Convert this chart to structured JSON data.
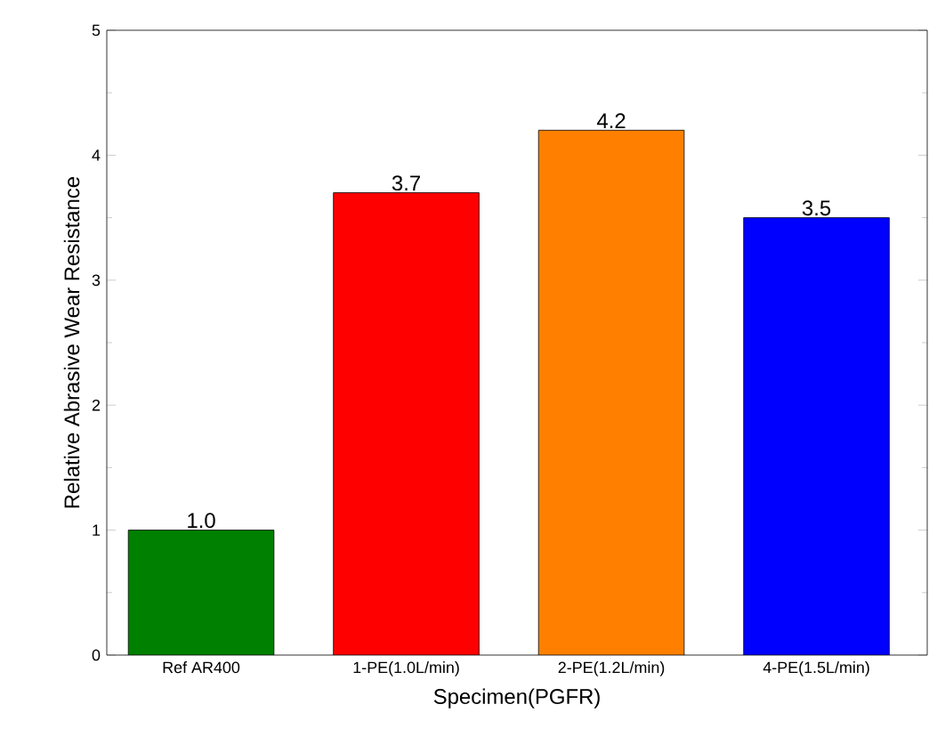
{
  "chart_data": {
    "type": "bar",
    "xlabel": "Specimen(PGFR)",
    "ylabel": "Relative Abrasive Wear Resistance",
    "categories": [
      "Ref AR400",
      "1-PE(1.0L/min)",
      "2-PE(1.2L/min)",
      "4-PE(1.5L/min)"
    ],
    "values": [
      1.0,
      3.7,
      4.2,
      3.5
    ],
    "value_labels": [
      "1.0",
      "3.7",
      "4.2",
      "3.5"
    ],
    "colors": [
      "#008000",
      "#ff0000",
      "#ff8000",
      "#0000ff"
    ],
    "ylim": [
      0,
      5
    ],
    "yticks": [
      0,
      1,
      2,
      3,
      4,
      5
    ],
    "grid": false
  }
}
